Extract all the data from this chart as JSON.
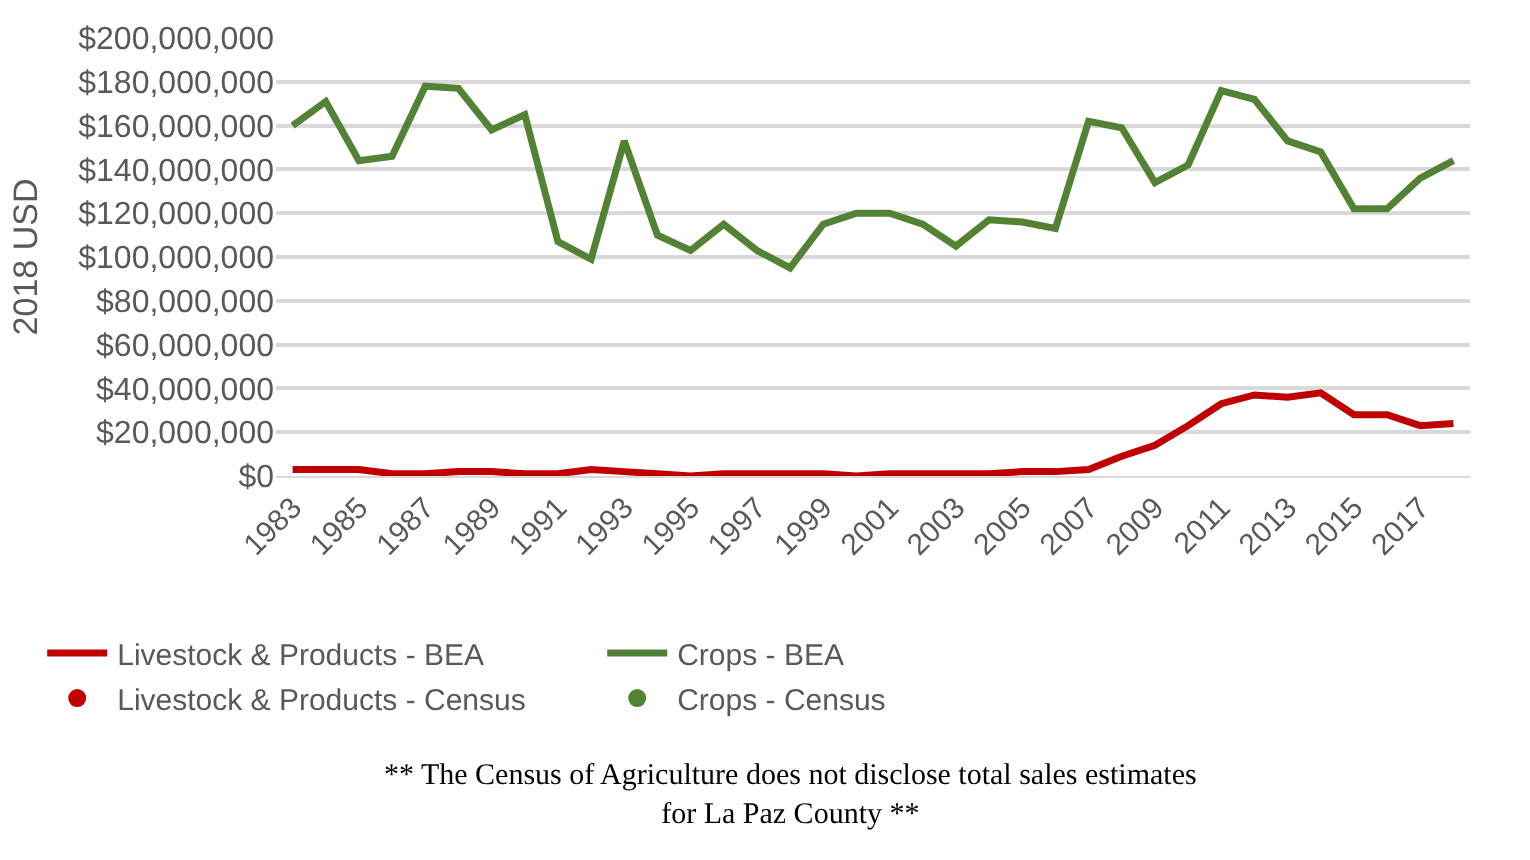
{
  "chart_data": {
    "type": "line",
    "ylabel": "2018 USD",
    "categories": [
      "1983",
      null,
      "1985",
      null,
      "1987",
      null,
      "1989",
      null,
      "1991",
      null,
      "1993",
      null,
      "1995",
      null,
      "1997",
      null,
      "1999",
      null,
      "2001",
      null,
      "2003",
      null,
      "2005",
      null,
      "2007",
      null,
      "2009",
      null,
      "2011",
      null,
      "2013",
      null,
      "2015",
      null,
      "2017",
      null
    ],
    "series": [
      {
        "name": "Livestock & Products - BEA",
        "color": "#c00000",
        "values": [
          3000000,
          3000000,
          3000000,
          1000000,
          1000000,
          2000000,
          2000000,
          1000000,
          1000000,
          3000000,
          2000000,
          1000000,
          0,
          1000000,
          1000000,
          1000000,
          1000000,
          0,
          1000000,
          1000000,
          1000000,
          1000000,
          2000000,
          2000000,
          3000000,
          9000000,
          14000000,
          23000000,
          33000000,
          37000000,
          36000000,
          38000000,
          28000000,
          28000000,
          23000000,
          24000000
        ]
      },
      {
        "name": "Crops - BEA",
        "color": "#548235",
        "values": [
          160000000,
          171000000,
          144000000,
          146000000,
          178000000,
          177000000,
          158000000,
          165000000,
          107000000,
          99000000,
          153000000,
          110000000,
          103000000,
          115000000,
          103000000,
          95000000,
          115000000,
          120000000,
          120000000,
          115000000,
          105000000,
          117000000,
          116000000,
          113000000,
          162000000,
          159000000,
          134000000,
          142000000,
          176000000,
          172000000,
          153000000,
          148000000,
          122000000,
          122000000,
          136000000,
          144000000
        ]
      },
      {
        "name": "Livestock & Products - Census",
        "color": "#c00000",
        "type": "scatter",
        "values": [
          null,
          null,
          null,
          null,
          null,
          null,
          null,
          null,
          null,
          null,
          null,
          null,
          null,
          null,
          null,
          null,
          null,
          null,
          null,
          null,
          null,
          null,
          null,
          null,
          null,
          null,
          null,
          null,
          null,
          null,
          null,
          null,
          null,
          null,
          null,
          null
        ]
      },
      {
        "name": "Crops - Census",
        "color": "#548235",
        "type": "scatter",
        "values": [
          null,
          null,
          null,
          null,
          null,
          null,
          null,
          null,
          null,
          null,
          null,
          null,
          null,
          null,
          null,
          null,
          null,
          null,
          null,
          null,
          null,
          null,
          null,
          null,
          null,
          null,
          null,
          null,
          null,
          null,
          null,
          null,
          null,
          null,
          null,
          null
        ]
      }
    ],
    "ylim": [
      0,
      200000000
    ],
    "yticks": [
      {
        "value": 0,
        "label": "$0"
      },
      {
        "value": 20000000,
        "label": "$20,000,000"
      },
      {
        "value": 40000000,
        "label": "$40,000,000"
      },
      {
        "value": 60000000,
        "label": "$60,000,000"
      },
      {
        "value": 80000000,
        "label": "$80,000,000"
      },
      {
        "value": 100000000,
        "label": "$100,000,000"
      },
      {
        "value": 120000000,
        "label": "$120,000,000"
      },
      {
        "value": 140000000,
        "label": "$140,000,000"
      },
      {
        "value": 160000000,
        "label": "$160,000,000"
      },
      {
        "value": 180000000,
        "label": "$180,000,000"
      },
      {
        "value": 200000000,
        "label": "$200,000,000"
      }
    ],
    "grid": "y",
    "legend": "bottom",
    "marker": "none",
    "line_style": "solid",
    "annotations": [
      "** The Census of Agriculture does not disclose total sales estimates for La Paz County **"
    ]
  }
}
